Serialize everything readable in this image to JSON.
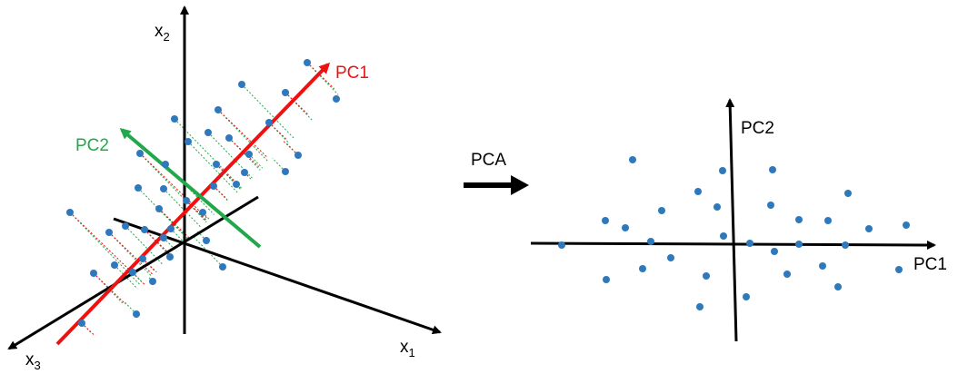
{
  "left_panel": {
    "axis_x1": "x",
    "axis_x1_sub": "1",
    "axis_x2": "x",
    "axis_x2_sub": "2",
    "axis_x3": "x",
    "axis_x3_sub": "3",
    "pc1_label": "PC1",
    "pc2_label": "PC2",
    "points_count": 40
  },
  "arrow_label": "PCA",
  "right_panel": {
    "pc1_label": "PC1",
    "pc2_label": "PC2",
    "points_count": 28
  },
  "colors": {
    "axis": "#000000",
    "pc1": "#ee1111",
    "pc2": "#22a84a",
    "point": "#2e78be",
    "proj_green": "#22a84a",
    "proj_red": "#ee1111"
  }
}
